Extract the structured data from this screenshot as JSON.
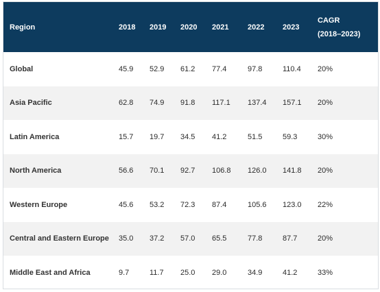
{
  "table": {
    "headers": {
      "region": "Region",
      "years": [
        "2018",
        "2019",
        "2020",
        "2021",
        "2022",
        "2023"
      ],
      "cagr_line1": "CAGR",
      "cagr_line2": "(2018–2023)"
    },
    "rows": [
      {
        "region": "Global",
        "values": [
          "45.9",
          "52.9",
          "61.2",
          "77.4",
          "97.8",
          "110.4"
        ],
        "cagr": "20%"
      },
      {
        "region": "Asia Pacific",
        "values": [
          "62.8",
          "74.9",
          "91.8",
          "117.1",
          "137.4",
          "157.1"
        ],
        "cagr": "20%"
      },
      {
        "region": "Latin America",
        "values": [
          "15.7",
          "19.7",
          "34.5",
          "41.2",
          "51.5",
          "59.3"
        ],
        "cagr": "30%"
      },
      {
        "region": "North America",
        "values": [
          "56.6",
          "70.1",
          "92.7",
          "106.8",
          "126.0",
          "141.8"
        ],
        "cagr": "20%"
      },
      {
        "region": "Western Europe",
        "values": [
          "45.6",
          "53.2",
          "72.3",
          "87.4",
          "105.6",
          "123.0"
        ],
        "cagr": "22%"
      },
      {
        "region": "Central and Eastern Europe",
        "values": [
          "35.0",
          "37.2",
          "57.0",
          "65.5",
          "77.8",
          "87.7"
        ],
        "cagr": "20%"
      },
      {
        "region": "Middle East and Africa",
        "values": [
          "9.7",
          "11.7",
          "25.0",
          "29.0",
          "34.9",
          "41.2"
        ],
        "cagr": "33%"
      }
    ]
  },
  "colors": {
    "header_bg": "#0d3b5e",
    "row_alt_bg": "#f2f2f2"
  }
}
